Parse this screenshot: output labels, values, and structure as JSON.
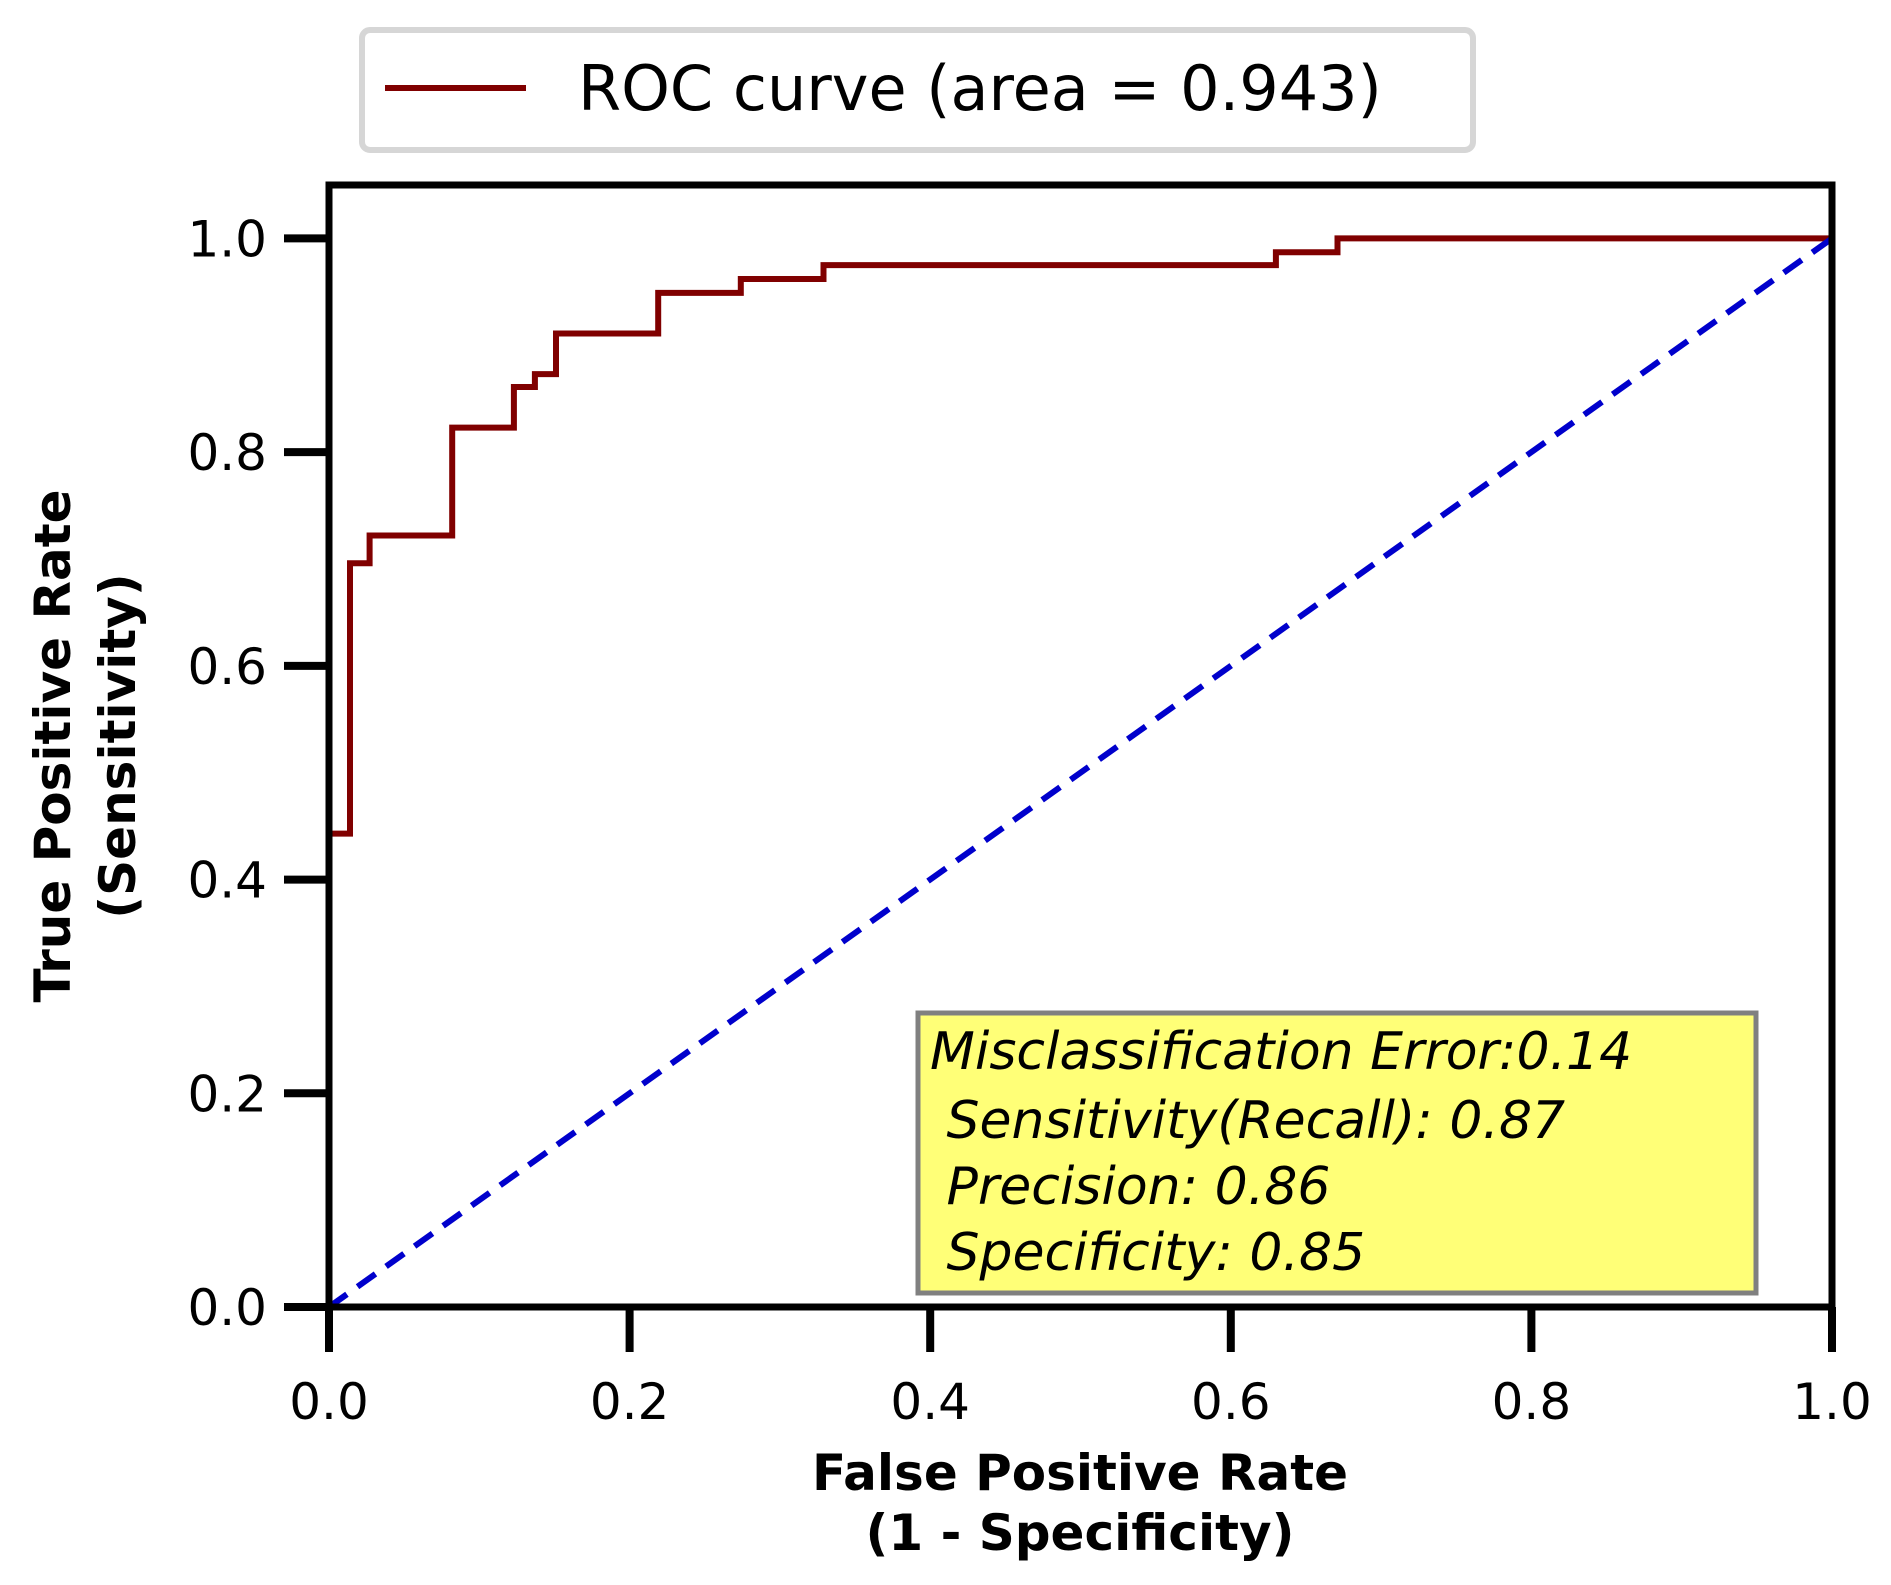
{
  "chart_data": {
    "type": "line",
    "title": "",
    "xlabel": [
      "False Positive Rate",
      "(1 - Specificity)"
    ],
    "ylabel": [
      "True Positive Rate",
      "(Sensitivity)"
    ],
    "xlim": [
      0.0,
      1.0
    ],
    "ylim": [
      0.0,
      1.05
    ],
    "xticks": [
      "0.0",
      "0.2",
      "0.4",
      "0.6",
      "0.8",
      "1.0"
    ],
    "yticks": [
      "0.0",
      "0.2",
      "0.4",
      "0.6",
      "0.8",
      "1.0"
    ],
    "grid": false,
    "legend": {
      "placement": "top-center, outside plot",
      "entries": [
        "ROC curve (area = 0.943)"
      ]
    },
    "series": [
      {
        "name": "ROC curve (area = 0.943)",
        "color": "#800000",
        "style": "solid-step",
        "x": [
          0.0,
          0.0,
          0.014,
          0.014,
          0.027,
          0.027,
          0.082,
          0.082,
          0.123,
          0.123,
          0.137,
          0.137,
          0.151,
          0.151,
          0.219,
          0.219,
          0.274,
          0.274,
          0.329,
          0.329,
          0.63,
          0.63,
          0.671,
          0.671,
          1.0
        ],
        "y": [
          0.0,
          0.443,
          0.443,
          0.696,
          0.696,
          0.722,
          0.722,
          0.823,
          0.823,
          0.861,
          0.861,
          0.873,
          0.873,
          0.911,
          0.911,
          0.949,
          0.949,
          0.962,
          0.962,
          0.975,
          0.975,
          0.987,
          0.987,
          1.0,
          1.0
        ]
      },
      {
        "name": "",
        "color": "#0000cc",
        "style": "dashed",
        "x": [
          0.0,
          1.0
        ],
        "y": [
          0.0,
          1.0
        ]
      }
    ],
    "annotations": {
      "background": "#ffff77",
      "border": "#808080",
      "lines": [
        "Misclassification Error:0.14",
        " Sensitivity(Recall): 0.87",
        " Precision: 0.86",
        " Specificity: 0.85"
      ]
    }
  }
}
